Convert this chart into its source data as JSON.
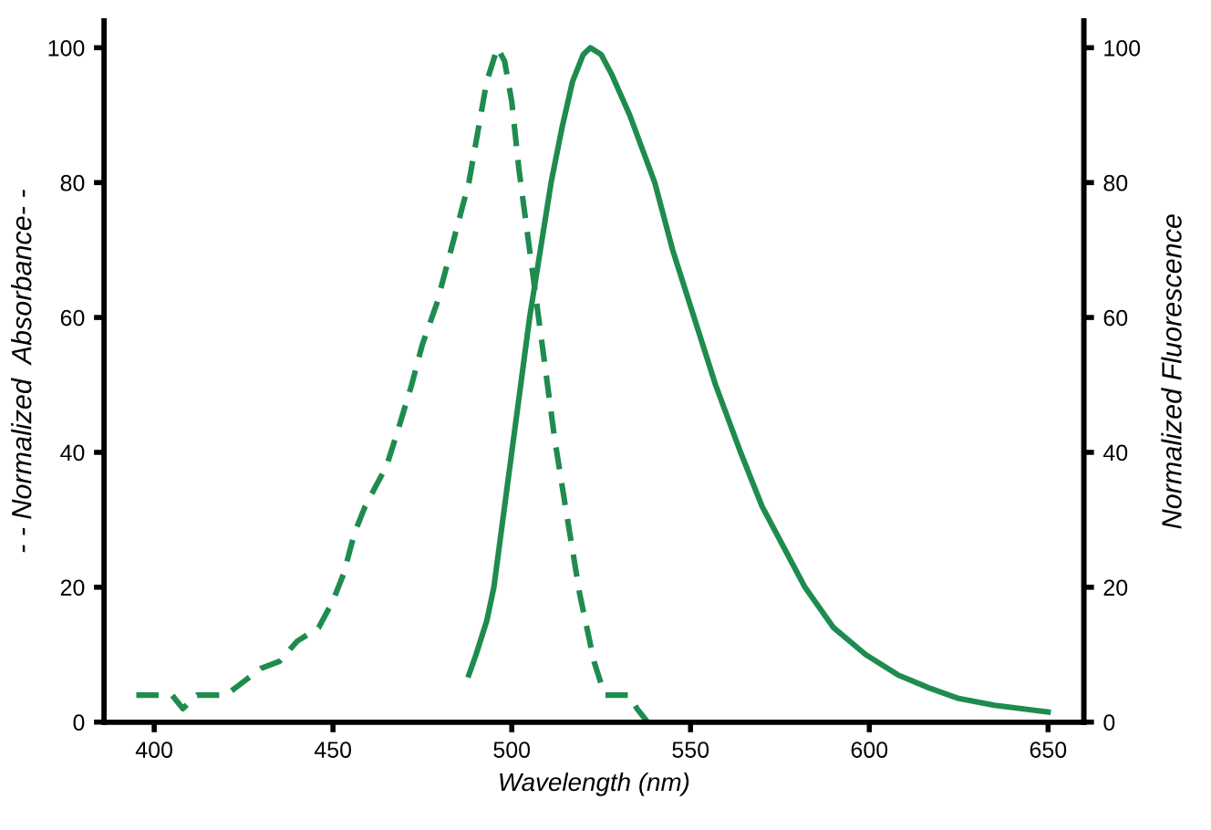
{
  "chart_data": {
    "type": "line",
    "xlabel": "Wavelength (nm)",
    "ylabel": "- - Normalized  Absorbance- -",
    "y2label": "Normalized Fluorescence",
    "xlim": [
      386,
      660
    ],
    "xticks": [
      400,
      450,
      500,
      550,
      600,
      650
    ],
    "ylim": [
      0,
      104
    ],
    "yticks": [
      0,
      20,
      40,
      60,
      80,
      100
    ],
    "y2lim": [
      0,
      104
    ],
    "y2ticks": [
      0,
      20,
      40,
      60,
      80,
      100
    ],
    "grid": false,
    "marker": "none",
    "series": [
      {
        "color": "#1e8c4e",
        "line_style": "dashed",
        "x": [
          395,
          400,
          405,
          408,
          412,
          416,
          420,
          425,
          430,
          435,
          440,
          446,
          450,
          453,
          456,
          459,
          462,
          465,
          468,
          472,
          475,
          479,
          483,
          486,
          488,
          490,
          493,
          496,
          498,
          500,
          502,
          505,
          508,
          512,
          515,
          519,
          523,
          526,
          528,
          530,
          533,
          535,
          538
        ],
        "values": [
          4,
          4,
          4,
          2,
          4,
          4,
          4,
          6,
          8,
          9,
          12,
          14,
          18,
          22,
          28,
          32,
          35,
          38,
          43,
          50,
          56,
          62,
          70,
          76,
          80,
          86,
          95,
          100,
          98,
          92,
          82,
          70,
          58,
          42,
          32,
          19,
          9,
          4,
          4,
          4,
          4,
          2,
          0
        ]
      },
      {
        "color": "#1e8c4e",
        "line_style": "solid",
        "x": [
          488,
          490,
          493,
          495,
          497,
          500,
          503,
          505,
          508,
          511,
          514,
          517,
          520,
          522,
          525,
          528,
          533,
          540,
          545,
          551,
          557,
          564,
          570,
          576,
          582,
          590,
          599,
          608,
          617,
          625,
          635,
          650
        ],
        "values": [
          7,
          10,
          15,
          20,
          28,
          40,
          52,
          60,
          70,
          80,
          88,
          95,
          99,
          100,
          99,
          96,
          90,
          80,
          70,
          60,
          50,
          40,
          32,
          26,
          20,
          14,
          10,
          7,
          5,
          3.5,
          2.5,
          1.5
        ]
      }
    ]
  }
}
